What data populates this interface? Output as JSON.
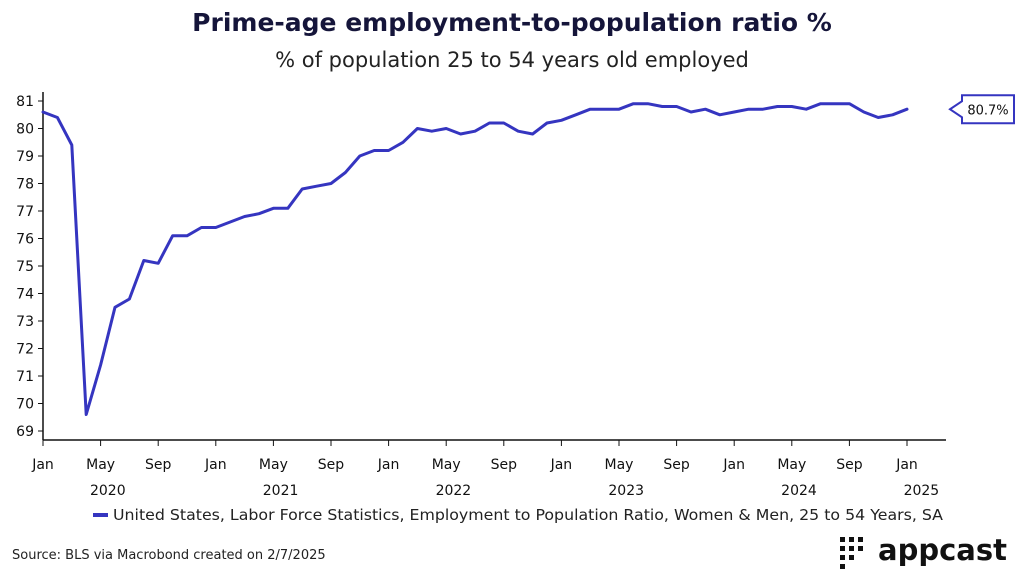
{
  "chart_data": {
    "type": "line",
    "title": "Prime-age employment-to-population ratio %",
    "subtitle": "% of population 25 to 54 years old employed",
    "ylim": [
      69,
      81
    ],
    "y_ticks": [
      "69",
      "70",
      "71",
      "72",
      "73",
      "74",
      "75",
      "76",
      "77",
      "78",
      "79",
      "80",
      "81"
    ],
    "x_month_ticks": [
      "Jan",
      "May",
      "Sep",
      "Jan",
      "May",
      "Sep",
      "Jan",
      "May",
      "Sep",
      "Jan",
      "May",
      "Sep",
      "Jan",
      "May",
      "Sep",
      "Jan"
    ],
    "x_year_ticks": [
      "2020",
      "2021",
      "2022",
      "2023",
      "2024",
      "2025"
    ],
    "x_start": "2020-01",
    "x_end": "2025-01",
    "series": [
      {
        "name": "United States, Labor Force Statistics, Employment to Population Ratio, Women & Men, 25 to 54 Years, SA",
        "color": "#3535c0",
        "values": [
          80.6,
          80.4,
          79.4,
          69.6,
          71.4,
          73.5,
          73.8,
          75.2,
          75.1,
          76.1,
          76.1,
          76.4,
          76.4,
          76.6,
          76.8,
          76.9,
          77.1,
          77.1,
          77.8,
          77.9,
          78.0,
          78.4,
          79.0,
          79.2,
          79.2,
          79.5,
          80.0,
          79.9,
          80.0,
          79.8,
          79.9,
          80.2,
          80.2,
          79.9,
          79.8,
          80.2,
          80.3,
          80.5,
          80.7,
          80.7,
          80.7,
          80.9,
          80.9,
          80.8,
          80.8,
          80.6,
          80.7,
          80.5,
          80.6,
          80.7,
          80.7,
          80.8,
          80.8,
          80.7,
          80.9,
          80.9,
          80.9,
          80.6,
          80.4,
          80.5,
          80.7
        ]
      }
    ],
    "last_value_label": "80.7%",
    "legend_position": "bottom",
    "grid": false
  },
  "source": "Source: BLS via Macrobond created on 2/7/2025",
  "logo_text": "appcast"
}
